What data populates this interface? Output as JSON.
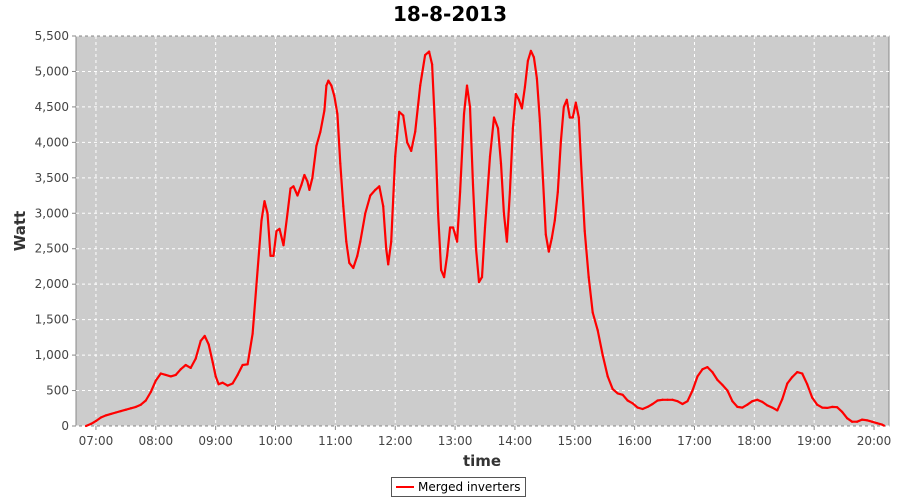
{
  "chart_data": {
    "type": "line",
    "title": "18-8-2013",
    "xlabel": "time",
    "ylabel": "Watt",
    "xlim": [
      "06:40",
      "20:15"
    ],
    "ylim": [
      0,
      5500
    ],
    "y_ticks": [
      0,
      500,
      1000,
      1500,
      2000,
      2500,
      3000,
      3500,
      4000,
      4500,
      5000,
      5500
    ],
    "y_tick_labels": [
      "0",
      "500",
      "1,000",
      "1,500",
      "2,000",
      "2,500",
      "3,000",
      "3,500",
      "4,000",
      "4,500",
      "5,000",
      "5,500"
    ],
    "x_ticks": [
      "07:00",
      "08:00",
      "09:00",
      "10:00",
      "11:00",
      "12:00",
      "13:00",
      "14:00",
      "15:00",
      "16:00",
      "17:00",
      "18:00",
      "19:00",
      "20:00"
    ],
    "grid": true,
    "legend_position": "bottom-center",
    "colors": {
      "series": "#ff0000",
      "plot_background": "#cccccc",
      "grid": "#ffffff"
    },
    "series": [
      {
        "name": "Merged inverters",
        "color": "#ff0000",
        "points": [
          [
            "06:50",
            0
          ],
          [
            "06:55",
            30
          ],
          [
            "07:00",
            70
          ],
          [
            "07:05",
            120
          ],
          [
            "07:10",
            150
          ],
          [
            "07:15",
            170
          ],
          [
            "07:20",
            190
          ],
          [
            "07:25",
            210
          ],
          [
            "07:30",
            230
          ],
          [
            "07:35",
            250
          ],
          [
            "07:40",
            270
          ],
          [
            "07:45",
            300
          ],
          [
            "07:50",
            360
          ],
          [
            "07:55",
            480
          ],
          [
            "08:00",
            640
          ],
          [
            "08:05",
            740
          ],
          [
            "08:10",
            720
          ],
          [
            "08:15",
            700
          ],
          [
            "08:20",
            720
          ],
          [
            "08:25",
            800
          ],
          [
            "08:30",
            860
          ],
          [
            "08:35",
            820
          ],
          [
            "08:40",
            950
          ],
          [
            "08:45",
            1200
          ],
          [
            "08:49",
            1270
          ],
          [
            "08:53",
            1150
          ],
          [
            "08:57",
            900
          ],
          [
            "09:00",
            700
          ],
          [
            "09:03",
            590
          ],
          [
            "09:07",
            610
          ],
          [
            "09:12",
            570
          ],
          [
            "09:17",
            600
          ],
          [
            "09:22",
            720
          ],
          [
            "09:27",
            860
          ],
          [
            "09:32",
            870
          ],
          [
            "09:37",
            1300
          ],
          [
            "09:42",
            2200
          ],
          [
            "09:46",
            2900
          ],
          [
            "09:49",
            3170
          ],
          [
            "09:52",
            3000
          ],
          [
            "09:55",
            2400
          ],
          [
            "09:58",
            2400
          ],
          [
            "10:01",
            2750
          ],
          [
            "10:04",
            2780
          ],
          [
            "10:08",
            2550
          ],
          [
            "10:12",
            3000
          ],
          [
            "10:15",
            3350
          ],
          [
            "10:18",
            3380
          ],
          [
            "10:22",
            3250
          ],
          [
            "10:26",
            3400
          ],
          [
            "10:29",
            3540
          ],
          [
            "10:32",
            3450
          ],
          [
            "10:34",
            3330
          ],
          [
            "10:37",
            3500
          ],
          [
            "10:41",
            3950
          ],
          [
            "10:45",
            4150
          ],
          [
            "10:49",
            4450
          ],
          [
            "10:51",
            4800
          ],
          [
            "10:53",
            4870
          ],
          [
            "10:56",
            4800
          ],
          [
            "10:59",
            4650
          ],
          [
            "11:02",
            4400
          ],
          [
            "11:05",
            3700
          ],
          [
            "11:08",
            3100
          ],
          [
            "11:11",
            2600
          ],
          [
            "11:14",
            2300
          ],
          [
            "11:18",
            2230
          ],
          [
            "11:22",
            2400
          ],
          [
            "11:25",
            2600
          ],
          [
            "11:30",
            3000
          ],
          [
            "11:35",
            3250
          ],
          [
            "11:40",
            3330
          ],
          [
            "11:44",
            3380
          ],
          [
            "11:48",
            3100
          ],
          [
            "11:51",
            2500
          ],
          [
            "11:53",
            2280
          ],
          [
            "11:56",
            2600
          ],
          [
            "12:00",
            3800
          ],
          [
            "12:04",
            4430
          ],
          [
            "12:08",
            4380
          ],
          [
            "12:12",
            4000
          ],
          [
            "12:16",
            3880
          ],
          [
            "12:20",
            4150
          ],
          [
            "12:25",
            4800
          ],
          [
            "12:30",
            5230
          ],
          [
            "12:34",
            5280
          ],
          [
            "12:37",
            5100
          ],
          [
            "12:40",
            4200
          ],
          [
            "12:43",
            3000
          ],
          [
            "12:46",
            2200
          ],
          [
            "12:49",
            2100
          ],
          [
            "12:52",
            2400
          ],
          [
            "12:55",
            2800
          ],
          [
            "12:58",
            2800
          ],
          [
            "13:02",
            2600
          ],
          [
            "13:05",
            3300
          ],
          [
            "13:09",
            4400
          ],
          [
            "13:12",
            4800
          ],
          [
            "13:15",
            4500
          ],
          [
            "13:18",
            3400
          ],
          [
            "13:21",
            2500
          ],
          [
            "13:24",
            2030
          ],
          [
            "13:27",
            2100
          ],
          [
            "13:30",
            2800
          ],
          [
            "13:35",
            3800
          ],
          [
            "13:39",
            4350
          ],
          [
            "13:43",
            4200
          ],
          [
            "13:46",
            3700
          ],
          [
            "13:49",
            3000
          ],
          [
            "13:52",
            2600
          ],
          [
            "13:55",
            3300
          ],
          [
            "13:58",
            4200
          ],
          [
            "14:01",
            4680
          ],
          [
            "14:04",
            4600
          ],
          [
            "14:07",
            4480
          ],
          [
            "14:10",
            4780
          ],
          [
            "14:13",
            5150
          ],
          [
            "14:16",
            5290
          ],
          [
            "14:19",
            5200
          ],
          [
            "14:22",
            4900
          ],
          [
            "14:25",
            4300
          ],
          [
            "14:28",
            3500
          ],
          [
            "14:31",
            2700
          ],
          [
            "14:34",
            2460
          ],
          [
            "14:37",
            2650
          ],
          [
            "14:40",
            2900
          ],
          [
            "14:43",
            3300
          ],
          [
            "14:46",
            4000
          ],
          [
            "14:49",
            4500
          ],
          [
            "14:52",
            4600
          ],
          [
            "14:55",
            4350
          ],
          [
            "14:58",
            4350
          ],
          [
            "15:01",
            4560
          ],
          [
            "15:04",
            4350
          ],
          [
            "15:07",
            3500
          ],
          [
            "15:10",
            2750
          ],
          [
            "15:14",
            2100
          ],
          [
            "15:18",
            1600
          ],
          [
            "15:23",
            1350
          ],
          [
            "15:28",
            1000
          ],
          [
            "15:33",
            700
          ],
          [
            "15:38",
            520
          ],
          [
            "15:43",
            460
          ],
          [
            "15:48",
            440
          ],
          [
            "15:53",
            360
          ],
          [
            "15:58",
            320
          ],
          [
            "16:03",
            260
          ],
          [
            "16:08",
            240
          ],
          [
            "16:13",
            270
          ],
          [
            "16:18",
            310
          ],
          [
            "16:23",
            360
          ],
          [
            "16:28",
            370
          ],
          [
            "16:33",
            370
          ],
          [
            "16:38",
            370
          ],
          [
            "16:43",
            350
          ],
          [
            "16:48",
            310
          ],
          [
            "16:53",
            350
          ],
          [
            "16:58",
            500
          ],
          [
            "17:03",
            700
          ],
          [
            "17:08",
            800
          ],
          [
            "17:13",
            830
          ],
          [
            "17:18",
            760
          ],
          [
            "17:23",
            650
          ],
          [
            "17:28",
            580
          ],
          [
            "17:33",
            500
          ],
          [
            "17:38",
            350
          ],
          [
            "17:43",
            270
          ],
          [
            "17:48",
            260
          ],
          [
            "17:53",
            300
          ],
          [
            "17:58",
            350
          ],
          [
            "18:03",
            370
          ],
          [
            "18:08",
            340
          ],
          [
            "18:13",
            290
          ],
          [
            "18:18",
            260
          ],
          [
            "18:23",
            220
          ],
          [
            "18:28",
            380
          ],
          [
            "18:33",
            600
          ],
          [
            "18:38",
            690
          ],
          [
            "18:43",
            760
          ],
          [
            "18:48",
            740
          ],
          [
            "18:53",
            590
          ],
          [
            "18:58",
            400
          ],
          [
            "19:03",
            300
          ],
          [
            "19:08",
            260
          ],
          [
            "19:13",
            255
          ],
          [
            "19:18",
            270
          ],
          [
            "19:23",
            265
          ],
          [
            "19:28",
            200
          ],
          [
            "19:33",
            110
          ],
          [
            "19:38",
            60
          ],
          [
            "19:43",
            60
          ],
          [
            "19:48",
            90
          ],
          [
            "19:53",
            80
          ],
          [
            "19:58",
            60
          ],
          [
            "20:03",
            40
          ],
          [
            "20:08",
            20
          ],
          [
            "20:10",
            5
          ]
        ]
      }
    ]
  }
}
